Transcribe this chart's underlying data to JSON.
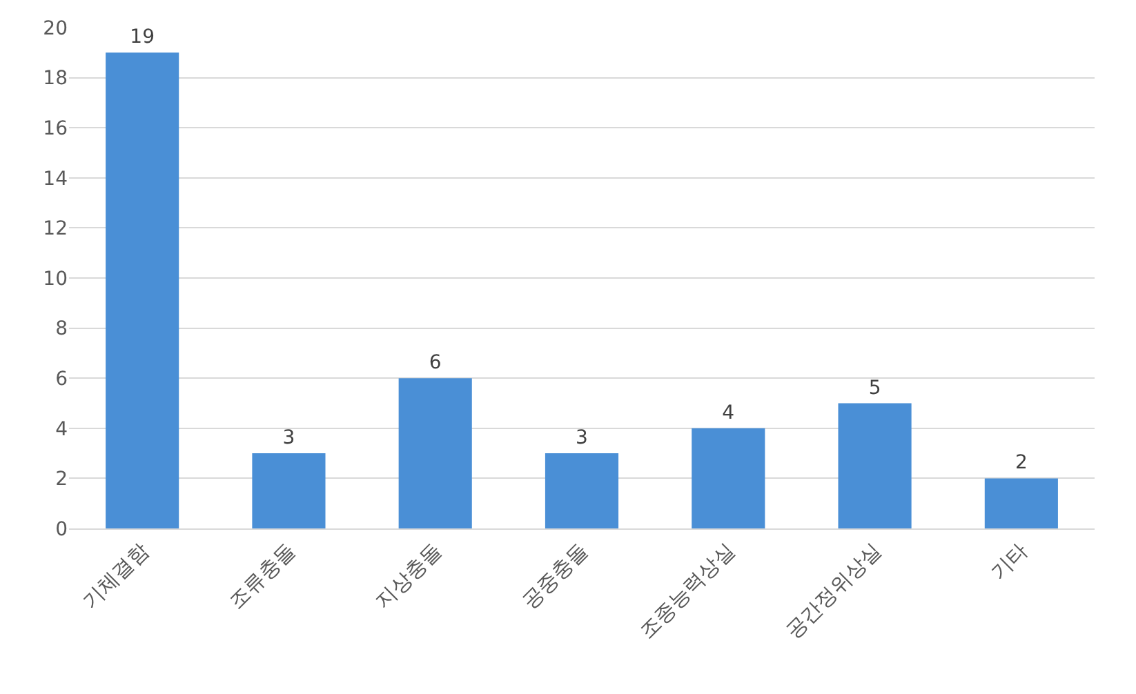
{
  "chart_data": {
    "type": "bar",
    "categories": [
      "기체결함",
      "조류충돌",
      "지상충돌",
      "공중충돌",
      "조종능력상실",
      "공간정위상실",
      "기타"
    ],
    "values": [
      19,
      3,
      6,
      3,
      4,
      5,
      2
    ],
    "color": "#4a8fd6",
    "ylim": [
      0,
      20
    ],
    "yticks": [
      0,
      2,
      4,
      6,
      8,
      10,
      12,
      14,
      16,
      18,
      20
    ],
    "grid": "y",
    "data_labels": true
  }
}
